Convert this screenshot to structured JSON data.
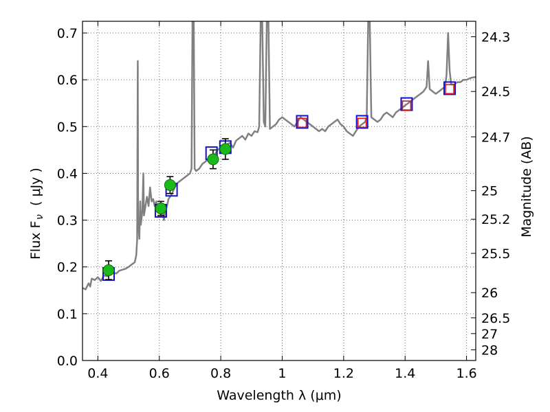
{
  "chart_data": {
    "type": "scatter",
    "xlabel": "Wavelength  λ (μm)",
    "ylabel": "Flux  F",
    "ylabel_sub": "ν",
    "ylabel_unit": "( μJy )",
    "ylabel_right": "Magnitude (AB)",
    "xlim": [
      0.35,
      1.63
    ],
    "ylim": [
      0.0,
      0.725
    ],
    "grid": true,
    "x_ticks": [
      {
        "value": 0.4,
        "label": "0.4"
      },
      {
        "value": 0.6,
        "label": "0.6"
      },
      {
        "value": 0.8,
        "label": "0.8"
      },
      {
        "value": 1.0,
        "label": "1"
      },
      {
        "value": 1.2,
        "label": "1.2"
      },
      {
        "value": 1.4,
        "label": "1.4"
      },
      {
        "value": 1.6,
        "label": "1.6"
      }
    ],
    "y_ticks": [
      {
        "value": 0.0,
        "label": "0.0"
      },
      {
        "value": 0.1,
        "label": "0.1"
      },
      {
        "value": 0.2,
        "label": "0.2"
      },
      {
        "value": 0.3,
        "label": "0.3"
      },
      {
        "value": 0.4,
        "label": "0.4"
      },
      {
        "value": 0.5,
        "label": "0.5"
      },
      {
        "value": 0.6,
        "label": "0.6"
      },
      {
        "value": 0.7,
        "label": "0.7"
      }
    ],
    "right_ticks": [
      {
        "label": "24.3",
        "flux": 0.692
      },
      {
        "label": "24.5",
        "flux": 0.575
      },
      {
        "label": "24.7",
        "flux": 0.478
      },
      {
        "label": "25",
        "flux": 0.363
      },
      {
        "label": "25.2",
        "flux": 0.302
      },
      {
        "label": "25.5",
        "flux": 0.229
      },
      {
        "label": "26",
        "flux": 0.145
      },
      {
        "label": "26.5",
        "flux": 0.0912
      },
      {
        "label": "27",
        "flux": 0.0575
      },
      {
        "label": "28",
        "flux": 0.0229
      }
    ],
    "series": [
      {
        "kind": "spectrum",
        "color": "#808080",
        "points": [
          [
            0.35,
            0.155
          ],
          [
            0.36,
            0.152
          ],
          [
            0.37,
            0.165
          ],
          [
            0.375,
            0.158
          ],
          [
            0.38,
            0.175
          ],
          [
            0.39,
            0.172
          ],
          [
            0.4,
            0.178
          ],
          [
            0.41,
            0.17
          ],
          [
            0.42,
            0.182
          ],
          [
            0.43,
            0.18
          ],
          [
            0.44,
            0.185
          ],
          [
            0.45,
            0.188
          ],
          [
            0.46,
            0.186
          ],
          [
            0.47,
            0.192
          ],
          [
            0.48,
            0.194
          ],
          [
            0.49,
            0.196
          ],
          [
            0.5,
            0.2
          ],
          [
            0.51,
            0.205
          ],
          [
            0.52,
            0.21
          ],
          [
            0.525,
            0.225
          ],
          [
            0.528,
            0.26
          ],
          [
            0.53,
            0.64
          ],
          [
            0.531,
            0.3
          ],
          [
            0.535,
            0.26
          ],
          [
            0.538,
            0.34
          ],
          [
            0.54,
            0.29
          ],
          [
            0.545,
            0.32
          ],
          [
            0.548,
            0.4
          ],
          [
            0.55,
            0.31
          ],
          [
            0.555,
            0.33
          ],
          [
            0.56,
            0.35
          ],
          [
            0.565,
            0.33
          ],
          [
            0.57,
            0.37
          ],
          [
            0.575,
            0.34
          ],
          [
            0.58,
            0.345
          ],
          [
            0.585,
            0.33
          ],
          [
            0.59,
            0.34
          ],
          [
            0.595,
            0.32
          ],
          [
            0.6,
            0.335
          ],
          [
            0.605,
            0.31
          ],
          [
            0.61,
            0.325
          ],
          [
            0.615,
            0.3
          ],
          [
            0.62,
            0.32
          ],
          [
            0.625,
            0.33
          ],
          [
            0.63,
            0.345
          ],
          [
            0.64,
            0.355
          ],
          [
            0.65,
            0.37
          ],
          [
            0.66,
            0.38
          ],
          [
            0.67,
            0.385
          ],
          [
            0.68,
            0.39
          ],
          [
            0.69,
            0.395
          ],
          [
            0.7,
            0.4
          ],
          [
            0.705,
            0.41
          ],
          [
            0.708,
            0.73
          ],
          [
            0.712,
            0.73
          ],
          [
            0.715,
            0.41
          ],
          [
            0.72,
            0.405
          ],
          [
            0.73,
            0.41
          ],
          [
            0.74,
            0.42
          ],
          [
            0.75,
            0.425
          ],
          [
            0.76,
            0.43
          ],
          [
            0.77,
            0.435
          ],
          [
            0.78,
            0.44
          ],
          [
            0.79,
            0.45
          ],
          [
            0.8,
            0.455
          ],
          [
            0.81,
            0.46
          ],
          [
            0.82,
            0.462
          ],
          [
            0.83,
            0.465
          ],
          [
            0.84,
            0.455
          ],
          [
            0.85,
            0.47
          ],
          [
            0.86,
            0.475
          ],
          [
            0.87,
            0.48
          ],
          [
            0.88,
            0.472
          ],
          [
            0.89,
            0.485
          ],
          [
            0.9,
            0.48
          ],
          [
            0.91,
            0.49
          ],
          [
            0.92,
            0.488
          ],
          [
            0.925,
            0.5
          ],
          [
            0.93,
            0.73
          ],
          [
            0.935,
            0.73
          ],
          [
            0.94,
            0.51
          ],
          [
            0.945,
            0.5
          ],
          [
            0.95,
            0.73
          ],
          [
            0.955,
            0.73
          ],
          [
            0.96,
            0.495
          ],
          [
            0.97,
            0.5
          ],
          [
            0.98,
            0.505
          ],
          [
            0.99,
            0.515
          ],
          [
            1.0,
            0.52
          ],
          [
            1.01,
            0.515
          ],
          [
            1.02,
            0.51
          ],
          [
            1.03,
            0.505
          ],
          [
            1.04,
            0.5
          ],
          [
            1.05,
            0.51
          ],
          [
            1.06,
            0.52
          ],
          [
            1.07,
            0.515
          ],
          [
            1.08,
            0.51
          ],
          [
            1.09,
            0.505
          ],
          [
            1.1,
            0.5
          ],
          [
            1.11,
            0.495
          ],
          [
            1.12,
            0.49
          ],
          [
            1.13,
            0.495
          ],
          [
            1.14,
            0.49
          ],
          [
            1.15,
            0.5
          ],
          [
            1.16,
            0.505
          ],
          [
            1.17,
            0.51
          ],
          [
            1.18,
            0.515
          ],
          [
            1.19,
            0.505
          ],
          [
            1.2,
            0.5
          ],
          [
            1.21,
            0.49
          ],
          [
            1.22,
            0.485
          ],
          [
            1.23,
            0.48
          ],
          [
            1.24,
            0.49
          ],
          [
            1.25,
            0.5
          ],
          [
            1.26,
            0.505
          ],
          [
            1.27,
            0.51
          ],
          [
            1.275,
            0.52
          ],
          [
            1.28,
            0.73
          ],
          [
            1.285,
            0.73
          ],
          [
            1.29,
            0.52
          ],
          [
            1.3,
            0.515
          ],
          [
            1.31,
            0.51
          ],
          [
            1.32,
            0.515
          ],
          [
            1.33,
            0.525
          ],
          [
            1.34,
            0.53
          ],
          [
            1.35,
            0.525
          ],
          [
            1.36,
            0.52
          ],
          [
            1.37,
            0.53
          ],
          [
            1.38,
            0.535
          ],
          [
            1.39,
            0.54
          ],
          [
            1.4,
            0.545
          ],
          [
            1.41,
            0.55
          ],
          [
            1.42,
            0.555
          ],
          [
            1.43,
            0.56
          ],
          [
            1.44,
            0.565
          ],
          [
            1.45,
            0.57
          ],
          [
            1.46,
            0.575
          ],
          [
            1.47,
            0.585
          ],
          [
            1.475,
            0.64
          ],
          [
            1.48,
            0.58
          ],
          [
            1.49,
            0.575
          ],
          [
            1.5,
            0.57
          ],
          [
            1.51,
            0.575
          ],
          [
            1.52,
            0.58
          ],
          [
            1.53,
            0.585
          ],
          [
            1.535,
            0.61
          ],
          [
            1.54,
            0.7
          ],
          [
            1.545,
            0.62
          ],
          [
            1.55,
            0.59
          ],
          [
            1.56,
            0.59
          ],
          [
            1.57,
            0.595
          ],
          [
            1.58,
            0.595
          ],
          [
            1.59,
            0.6
          ],
          [
            1.6,
            0.6
          ],
          [
            1.61,
            0.603
          ],
          [
            1.62,
            0.605
          ],
          [
            1.63,
            0.606
          ]
        ]
      },
      {
        "kind": "photometry",
        "color": "#1aba1a",
        "points": [
          {
            "x": 0.435,
            "y": 0.193,
            "err": 0.02
          },
          {
            "x": 0.605,
            "y": 0.325,
            "err": 0.015
          },
          {
            "x": 0.635,
            "y": 0.375,
            "err": 0.018
          },
          {
            "x": 0.775,
            "y": 0.43,
            "err": 0.02
          },
          {
            "x": 0.815,
            "y": 0.452,
            "err": 0.022
          }
        ]
      },
      {
        "kind": "model-boxes",
        "color": "#1010cc",
        "points": [
          {
            "x": 0.435,
            "y": 0.185
          },
          {
            "x": 0.605,
            "y": 0.32
          },
          {
            "x": 0.64,
            "y": 0.365
          },
          {
            "x": 0.77,
            "y": 0.443
          },
          {
            "x": 0.815,
            "y": 0.456
          },
          {
            "x": 1.065,
            "y": 0.51
          },
          {
            "x": 1.26,
            "y": 0.51
          },
          {
            "x": 1.405,
            "y": 0.548
          },
          {
            "x": 1.545,
            "y": 0.582
          }
        ]
      },
      {
        "kind": "ir-boxes",
        "color": "#e0101e",
        "points": [
          {
            "x": 1.065,
            "y": 0.508
          },
          {
            "x": 1.26,
            "y": 0.508
          },
          {
            "x": 1.405,
            "y": 0.545
          },
          {
            "x": 1.545,
            "y": 0.58
          }
        ]
      }
    ]
  }
}
